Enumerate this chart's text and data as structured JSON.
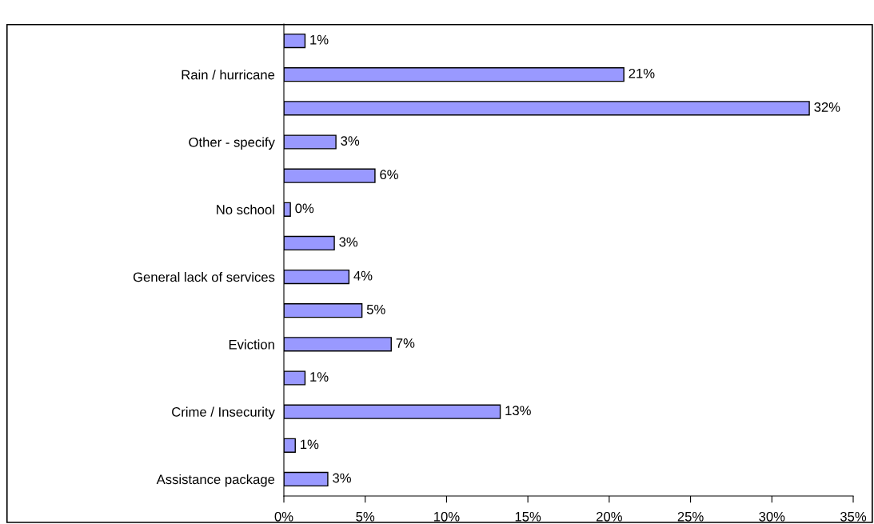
{
  "chart_data": {
    "type": "bar",
    "orientation": "horizontal",
    "categories": [
      null,
      "Rain / hurricane",
      null,
      "Other - specify",
      null,
      "No school",
      null,
      "General lack of services",
      null,
      "Eviction",
      null,
      "Crime / Insecurity",
      null,
      "Assistance package"
    ],
    "values": [
      1.3,
      20.9,
      32.3,
      3.2,
      5.6,
      0.4,
      3.1,
      4.0,
      4.8,
      6.6,
      1.3,
      13.3,
      0.7,
      2.7
    ],
    "value_labels": [
      "1%",
      "21%",
      "32%",
      "3%",
      "6%",
      "0%",
      "3%",
      "4%",
      "5%",
      "7%",
      "1%",
      "13%",
      "1%",
      "3%"
    ],
    "color": "#9999ff",
    "xlim": [
      0,
      35
    ],
    "xticks": [
      {
        "value": 0,
        "label": "0%"
      },
      {
        "value": 5,
        "label": "5%"
      },
      {
        "value": 10,
        "label": "10%"
      },
      {
        "value": 15,
        "label": "15%"
      },
      {
        "value": 20,
        "label": "20%"
      },
      {
        "value": 25,
        "label": "25%"
      },
      {
        "value": 30,
        "label": "30%"
      },
      {
        "value": 35,
        "label": "35%"
      }
    ],
    "grid": false,
    "legend": false
  }
}
